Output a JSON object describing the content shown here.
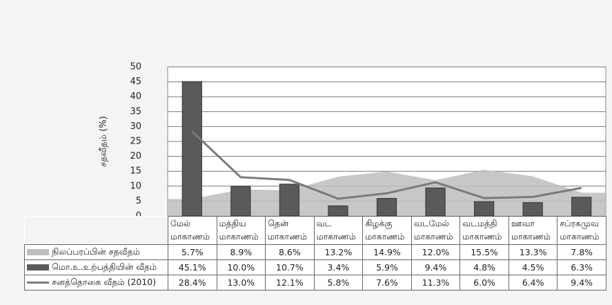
{
  "chart_data": {
    "type": "combo",
    "y_label": "சதவீதம் (%)",
    "categories": [
      "மேல் மாகாணம்",
      "மத்திய மாகாணம்",
      "தென் மாகாணம்",
      "வட மாகாணம்",
      "கிழக்கு மாகாணம்",
      "வடமேல் மாகாணம்",
      "வடமத்தி மாகாணம்",
      "ஊவா மாகாணம்",
      "சப்ரகமுவ மாகாணம்"
    ],
    "series": [
      {
        "name": "நிலப்பரப்பின் சதவீதம்",
        "kind": "area",
        "color": "#bdbdbd",
        "values": [
          5.7,
          8.9,
          8.6,
          13.2,
          14.9,
          12.0,
          15.5,
          13.3,
          7.8
        ],
        "value_labels": [
          "5.7%",
          "8.9%",
          "8.6%",
          "13.2%",
          "14.9%",
          "12.0%",
          "15.5%",
          "13.3%",
          "7.8%"
        ]
      },
      {
        "name": "மொ.உ.உற்பத்தியின் வீதம்",
        "kind": "bar",
        "color": "#5a5a5a",
        "values": [
          45.1,
          10.0,
          10.7,
          3.4,
          5.9,
          9.4,
          4.8,
          4.5,
          6.3
        ],
        "value_labels": [
          "45.1%",
          "10.0%",
          "10.7%",
          "3.4%",
          "5.9%",
          "9.4%",
          "4.8%",
          "4.5%",
          "6.3%"
        ]
      },
      {
        "name": "சனத்தொகை வீதம் (2010)",
        "kind": "line",
        "color": "#7a7a7a",
        "values": [
          28.4,
          13.0,
          12.1,
          5.8,
          7.6,
          11.3,
          6.0,
          6.4,
          9.4
        ],
        "value_labels": [
          "28.4%",
          "13.0%",
          "12.1%",
          "5.8%",
          "7.6%",
          "11.3%",
          "6.0%",
          "6.4%",
          "9.4%"
        ]
      }
    ],
    "ylim": [
      0,
      50
    ],
    "yticks": [
      0,
      5,
      10,
      15,
      20,
      25,
      30,
      35,
      40,
      45,
      50
    ],
    "grid": true
  }
}
